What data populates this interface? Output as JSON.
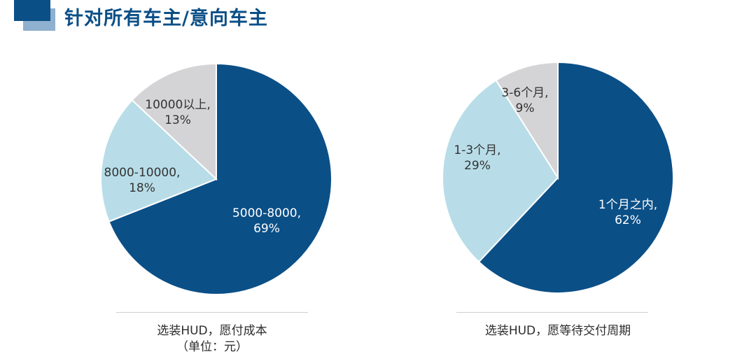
{
  "page_title": "针对所有车主/意向车主",
  "chart_data": [
    {
      "type": "pie",
      "caption_lines": [
        "选装HUD，愿付成本",
        "（单位：元）"
      ],
      "slices": [
        {
          "label": "5000-8000,",
          "pct_label": "69%",
          "value": 69,
          "color": "#0b4f87",
          "text_color": "#ffffff"
        },
        {
          "label": "8000-10000,",
          "pct_label": "18%",
          "value": 18,
          "color": "#b8dde8",
          "text_color": "#333333"
        },
        {
          "label": "10000以上,",
          "pct_label": "13%",
          "value": 13,
          "color": "#d4d4d6",
          "text_color": "#333333"
        }
      ]
    },
    {
      "type": "pie",
      "caption_lines": [
        "选装HUD，愿等待交付周期"
      ],
      "slices": [
        {
          "label": "1个月之内,",
          "pct_label": "62%",
          "value": 62,
          "color": "#0b4f87",
          "text_color": "#ffffff"
        },
        {
          "label": "1-3个月,",
          "pct_label": "29%",
          "value": 29,
          "color": "#b8dde8",
          "text_color": "#333333"
        },
        {
          "label": "3-6个月,",
          "pct_label": "9%",
          "value": 9,
          "color": "#d4d4d6",
          "text_color": "#333333"
        }
      ]
    }
  ]
}
